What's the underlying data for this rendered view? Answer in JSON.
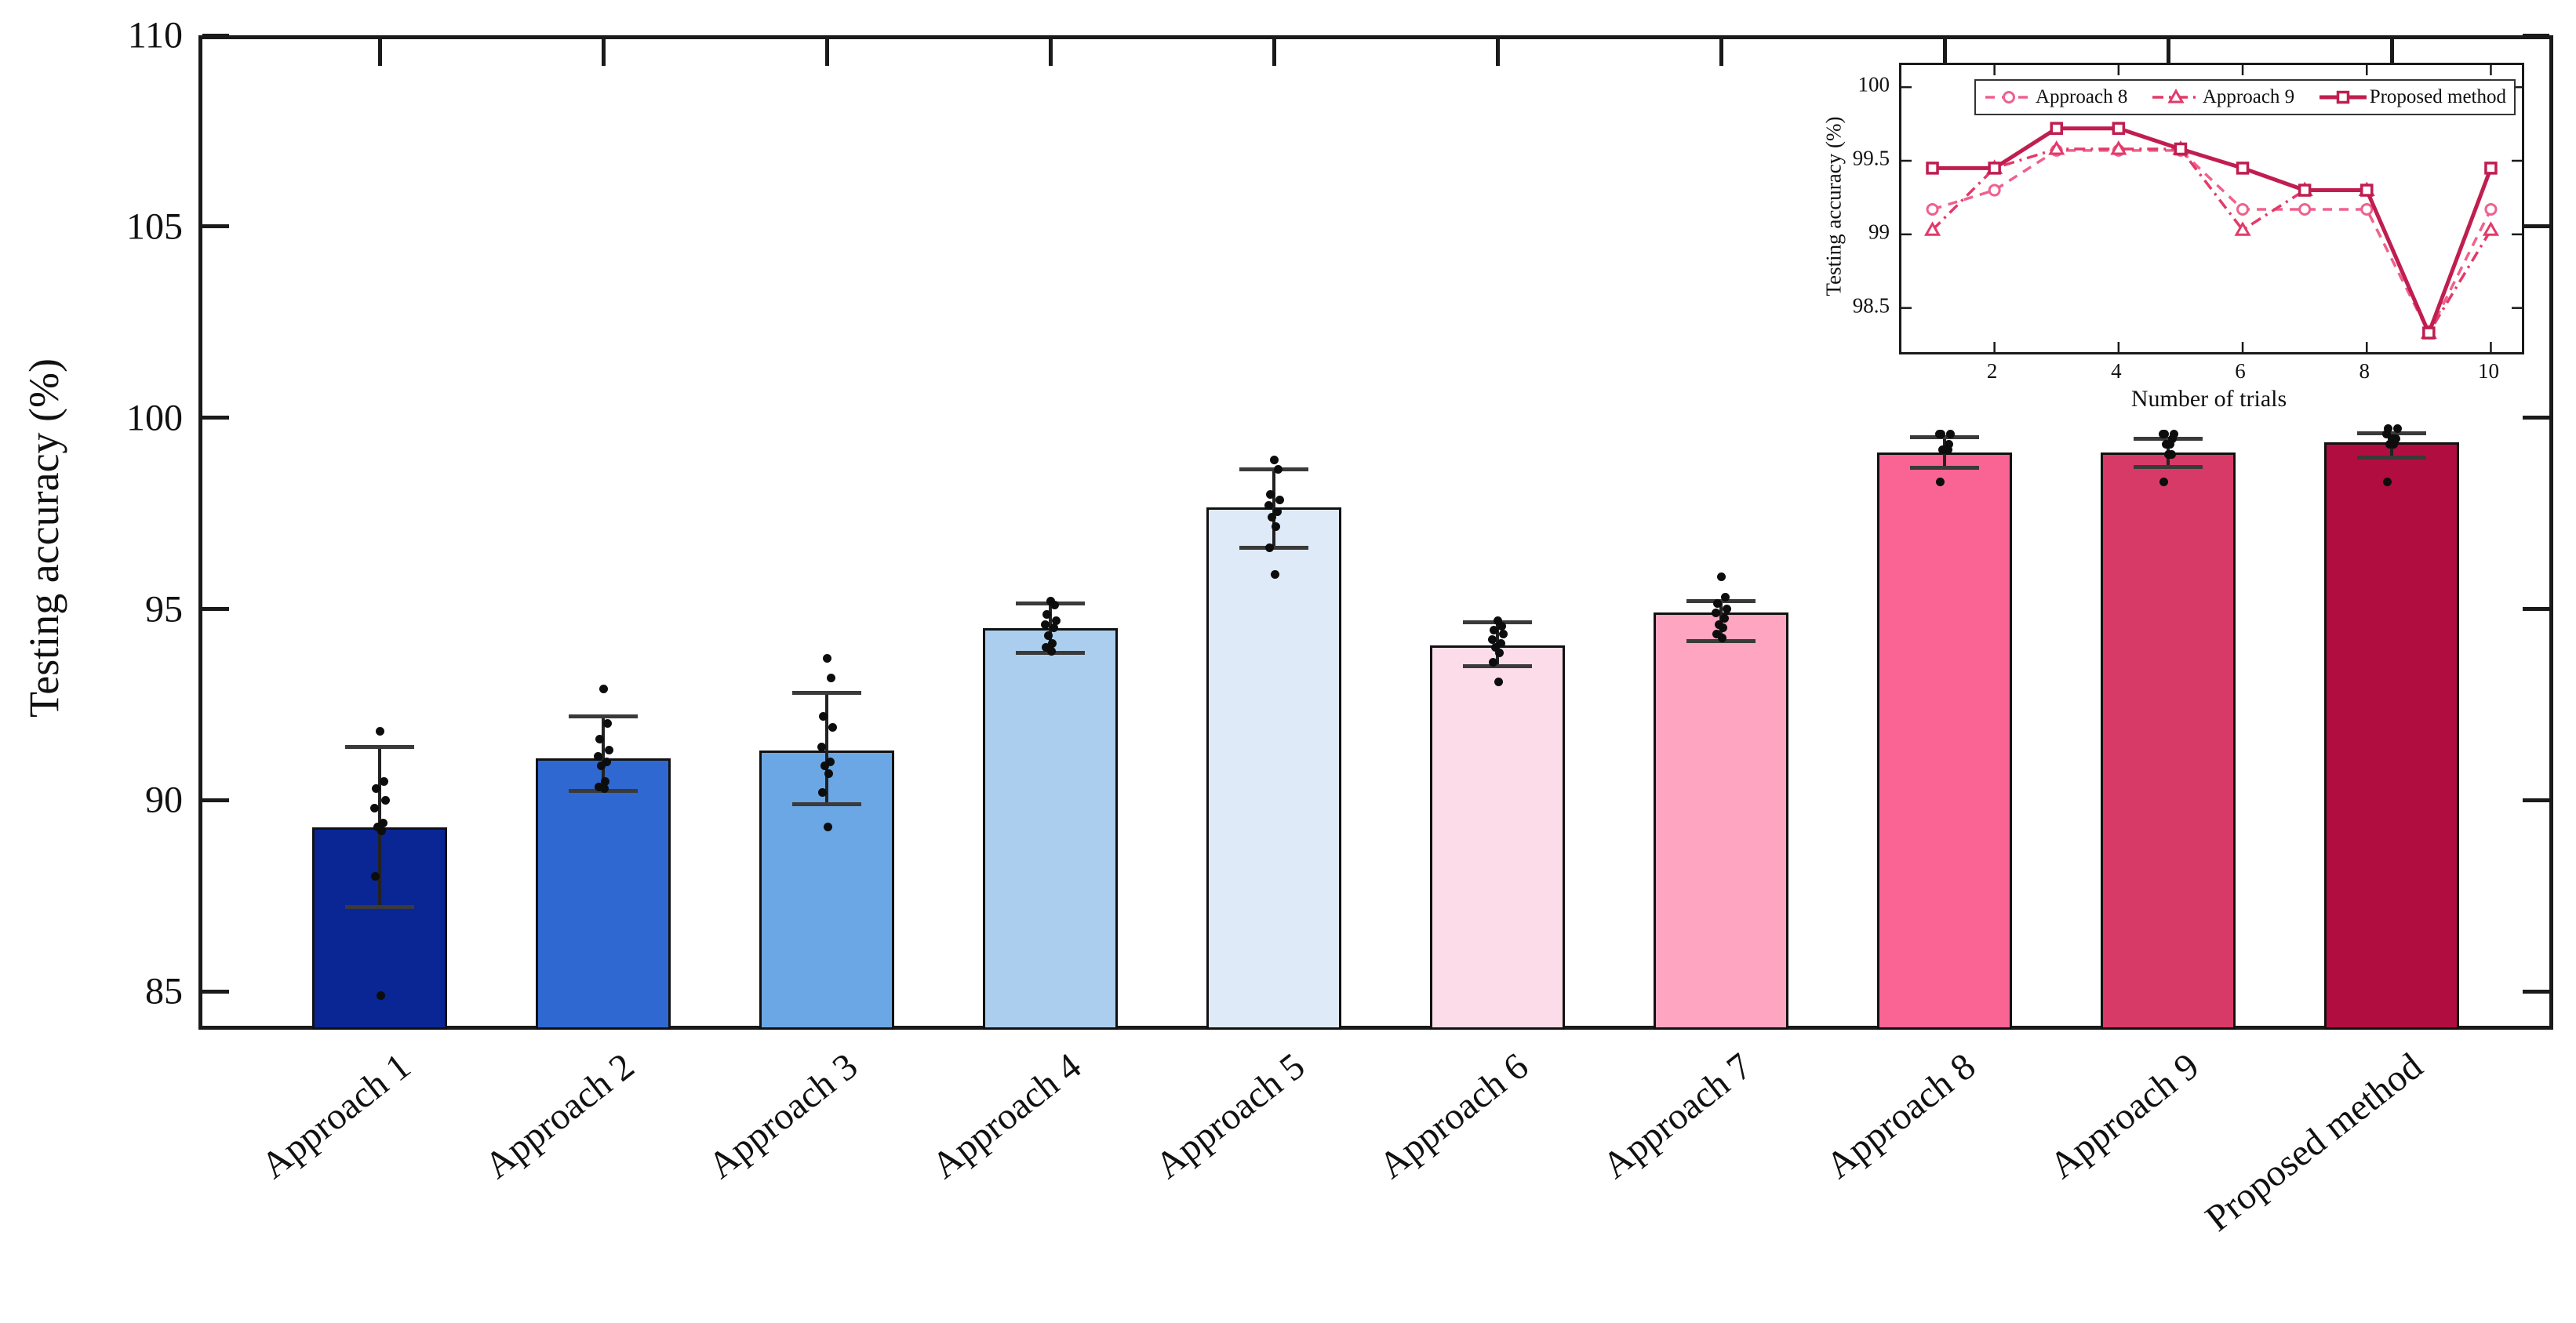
{
  "chart_data": [
    {
      "type": "bar",
      "title": "",
      "xlabel": "",
      "ylabel": "Testing accuracy (%)",
      "ylim": [
        84,
        110
      ],
      "yticks": [
        85,
        90,
        95,
        100,
        105,
        110
      ],
      "grid": false,
      "categories": [
        "Approach 1",
        "Approach 2",
        "Approach 3",
        "Approach 4",
        "Approach 5",
        "Approach 6",
        "Approach 7",
        "Approach 8",
        "Approach 9",
        "Proposed method"
      ],
      "values": [
        89.3,
        91.1,
        91.3,
        94.5,
        97.65,
        94.05,
        94.9,
        99.1,
        99.1,
        99.35
      ],
      "error_low": [
        87.2,
        90.25,
        89.9,
        93.85,
        96.6,
        93.5,
        94.15,
        98.7,
        98.72,
        98.95
      ],
      "error_high": [
        91.4,
        92.2,
        92.8,
        95.15,
        98.65,
        94.65,
        95.2,
        99.5,
        99.45,
        99.6
      ],
      "bar_colors": [
        "#0a2694",
        "#2f68d0",
        "#6ba7e5",
        "#abceee",
        "#dfeaf8",
        "#fcdce8",
        "#fda5c1",
        "#fa6494",
        "#d83a68",
        "#b10d40"
      ],
      "points": [
        [
          91.8,
          90.5,
          90.3,
          90.0,
          89.8,
          89.4,
          89.3,
          89.2,
          88.0,
          84.9
        ],
        [
          92.9,
          92.0,
          91.6,
          91.3,
          91.15,
          91.0,
          90.9,
          90.5,
          90.35,
          90.3
        ],
        [
          93.7,
          93.2,
          92.2,
          91.9,
          91.4,
          91.0,
          90.9,
          90.7,
          90.2,
          89.3
        ],
        [
          95.2,
          95.1,
          94.85,
          94.7,
          94.6,
          94.5,
          94.3,
          94.1,
          94.0,
          93.9
        ],
        [
          98.9,
          98.65,
          98.0,
          97.85,
          97.7,
          97.55,
          97.4,
          97.15,
          96.6,
          95.9
        ],
        [
          94.7,
          94.55,
          94.45,
          94.35,
          94.2,
          94.1,
          94.0,
          93.85,
          93.6,
          93.1
        ],
        [
          95.85,
          95.3,
          95.15,
          95.0,
          94.9,
          94.75,
          94.6,
          94.5,
          94.35,
          94.25
        ],
        [
          99.17,
          99.3,
          99.57,
          99.57,
          99.57,
          99.17,
          99.17,
          99.17,
          98.33,
          99.17
        ],
        [
          99.03,
          99.45,
          99.58,
          99.58,
          99.58,
          99.03,
          99.3,
          99.3,
          98.33,
          99.03
        ],
        [
          99.45,
          99.45,
          99.72,
          99.72,
          99.58,
          99.45,
          99.3,
          99.3,
          98.33,
          99.45
        ]
      ]
    },
    {
      "type": "line",
      "title": "",
      "xlabel": "Number of trials",
      "ylabel": "Testing accuracy (%)",
      "xlim": [
        0.5,
        10.5
      ],
      "ylim": [
        98.2,
        100.15
      ],
      "xticks": [
        2,
        4,
        6,
        8,
        10
      ],
      "yticks": [
        98.5,
        99,
        99.5,
        100
      ],
      "grid": false,
      "legend_position": "top",
      "x": [
        1,
        2,
        3,
        4,
        5,
        6,
        7,
        8,
        9,
        10
      ],
      "series": [
        {
          "name": "Approach 8",
          "color": "#f0608e",
          "linestyle": "dashed",
          "marker": "circle",
          "values": [
            99.17,
            99.3,
            99.57,
            99.57,
            99.57,
            99.17,
            99.17,
            99.17,
            98.33,
            99.17
          ]
        },
        {
          "name": "Approach 9",
          "color": "#e23a68",
          "linestyle": "dashdot",
          "marker": "triangle",
          "values": [
            99.03,
            99.45,
            99.58,
            99.58,
            99.58,
            99.03,
            99.3,
            99.3,
            98.33,
            99.03
          ]
        },
        {
          "name": "Proposed method",
          "color": "#c01e50",
          "linestyle": "solid",
          "marker": "square",
          "values": [
            99.45,
            99.45,
            99.72,
            99.72,
            99.58,
            99.45,
            99.3,
            99.3,
            98.33,
            99.45
          ]
        }
      ]
    }
  ]
}
